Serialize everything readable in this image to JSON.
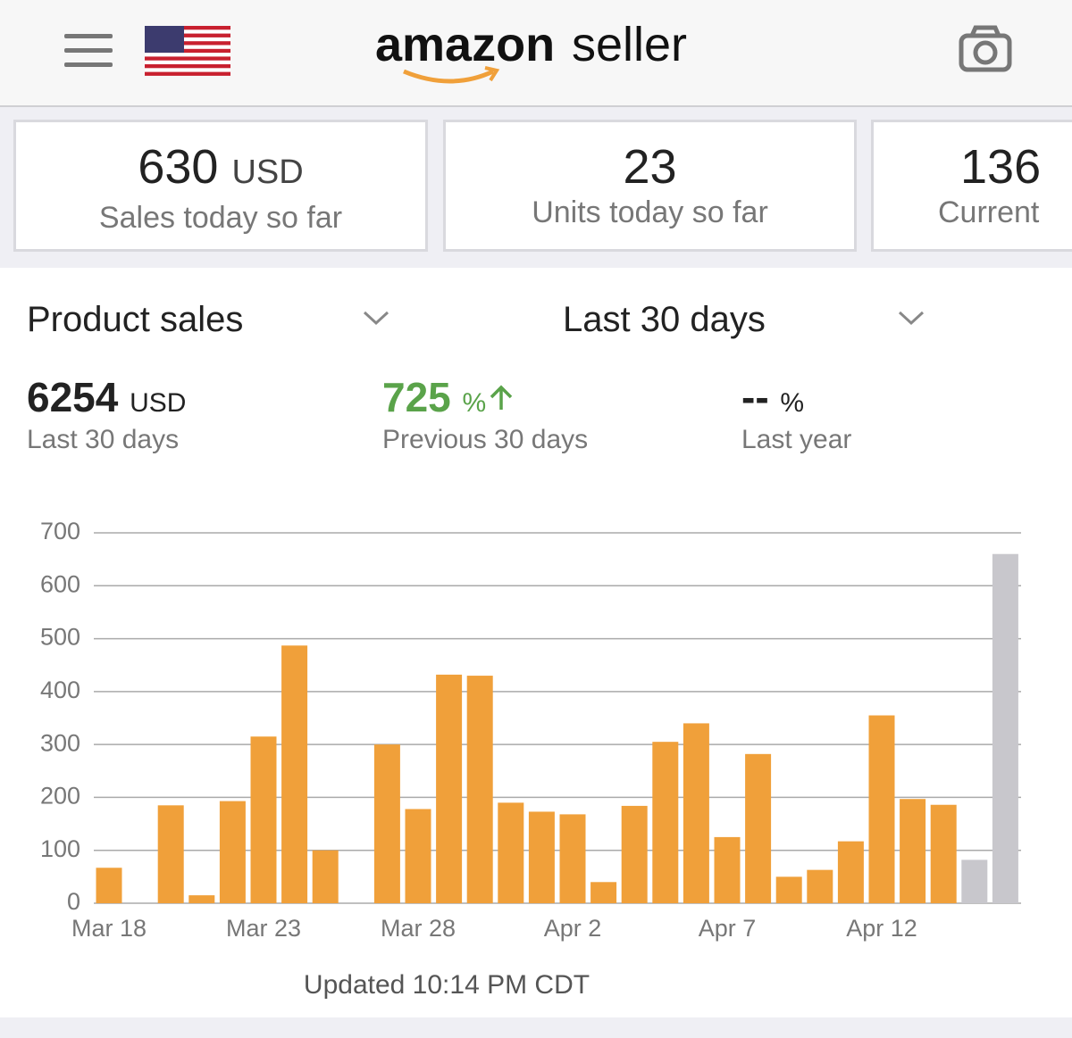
{
  "header": {
    "logo_main": "amazon",
    "logo_sub": "seller"
  },
  "cards": [
    {
      "value": "630",
      "unit": "USD",
      "label": "Sales today so far"
    },
    {
      "value": "23",
      "label": "Units today so far"
    },
    {
      "value": "136",
      "label": "Current"
    }
  ],
  "selectors": {
    "metric": "Product sales",
    "period": "Last 30 days"
  },
  "summary": [
    {
      "value": "6254",
      "unit": "USD",
      "label": "Last 30 days"
    },
    {
      "value": "725",
      "unit": "%",
      "label": "Previous 30 days"
    },
    {
      "value": "--",
      "unit": "%",
      "label": "Last year"
    }
  ],
  "chart_data": {
    "type": "bar",
    "categories": [
      "Mar 18",
      null,
      null,
      null,
      null,
      "Mar 23",
      null,
      null,
      null,
      null,
      "Mar 28",
      null,
      null,
      null,
      null,
      "Apr 2",
      null,
      null,
      null,
      null,
      "Apr 7",
      null,
      null,
      null,
      null,
      "Apr 12",
      null,
      null,
      null,
      null
    ],
    "values": [
      67,
      null,
      185,
      15,
      193,
      315,
      487,
      100,
      null,
      300,
      178,
      432,
      430,
      190,
      173,
      168,
      40,
      184,
      305,
      340,
      125,
      282,
      50,
      63,
      117,
      355,
      197,
      186,
      82,
      660
    ],
    "colors": [
      "#f0a03a",
      "#f0a03a",
      "#f0a03a",
      "#f0a03a",
      "#f0a03a",
      "#f0a03a",
      "#f0a03a",
      "#f0a03a",
      "#f0a03a",
      "#f0a03a",
      "#f0a03a",
      "#f0a03a",
      "#f0a03a",
      "#f0a03a",
      "#f0a03a",
      "#f0a03a",
      "#f0a03a",
      "#f0a03a",
      "#f0a03a",
      "#f0a03a",
      "#f0a03a",
      "#f0a03a",
      "#f0a03a",
      "#f0a03a",
      "#f0a03a",
      "#f0a03a",
      "#f0a03a",
      "#f0a03a",
      "#c8c7cc",
      "#c8c7cc"
    ],
    "ylim": [
      0,
      700
    ],
    "yticks": [
      0,
      100,
      200,
      300,
      400,
      500,
      600,
      700
    ],
    "grid": true
  },
  "footer": {
    "updated": "Updated 10:14 PM CDT"
  }
}
